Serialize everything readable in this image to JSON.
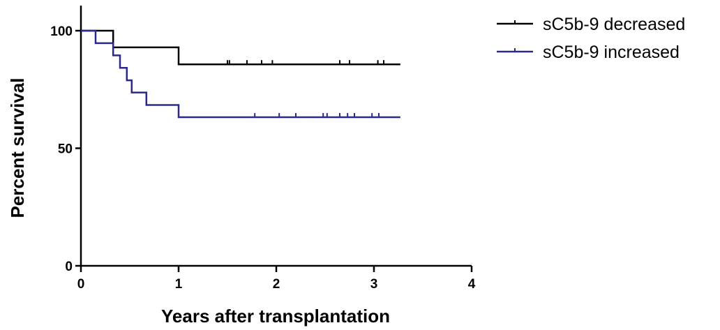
{
  "chart_data": {
    "type": "line",
    "subtype": "kaplan-meier",
    "title": "",
    "xlabel": "Years after transplantation",
    "ylabel": "Percent survival",
    "xlim": [
      0,
      4
    ],
    "ylim": [
      0,
      100
    ],
    "x_ticks": [
      0,
      1,
      2,
      3,
      4
    ],
    "y_ticks": [
      0,
      50,
      100
    ],
    "x_tick_labels": [
      "0",
      "1",
      "2",
      "3",
      "4"
    ],
    "y_tick_labels": [
      "0",
      "50",
      "100"
    ],
    "grid": false,
    "legend_position": "top-right",
    "series": [
      {
        "name": "sC5b-9 decreased",
        "color": "#000000",
        "steps": [
          [
            0,
            100
          ],
          [
            0.33,
            92.9
          ],
          [
            1.0,
            85.7
          ],
          [
            3.27,
            85.7
          ]
        ],
        "censored": [
          1.5,
          1.52,
          1.7,
          1.85,
          1.96,
          2.65,
          2.75,
          3.04,
          3.1
        ]
      },
      {
        "name": "sC5b-9 increased",
        "color": "#2a2a8e",
        "steps": [
          [
            0,
            100
          ],
          [
            0.15,
            94.7
          ],
          [
            0.33,
            89.5
          ],
          [
            0.4,
            84.2
          ],
          [
            0.47,
            78.9
          ],
          [
            0.52,
            73.7
          ],
          [
            0.67,
            68.4
          ],
          [
            1.0,
            63.2
          ],
          [
            3.27,
            63.2
          ]
        ],
        "censored": [
          1.78,
          2.03,
          2.2,
          2.48,
          2.52,
          2.65,
          2.73,
          2.8,
          2.98,
          3.05
        ]
      }
    ]
  }
}
